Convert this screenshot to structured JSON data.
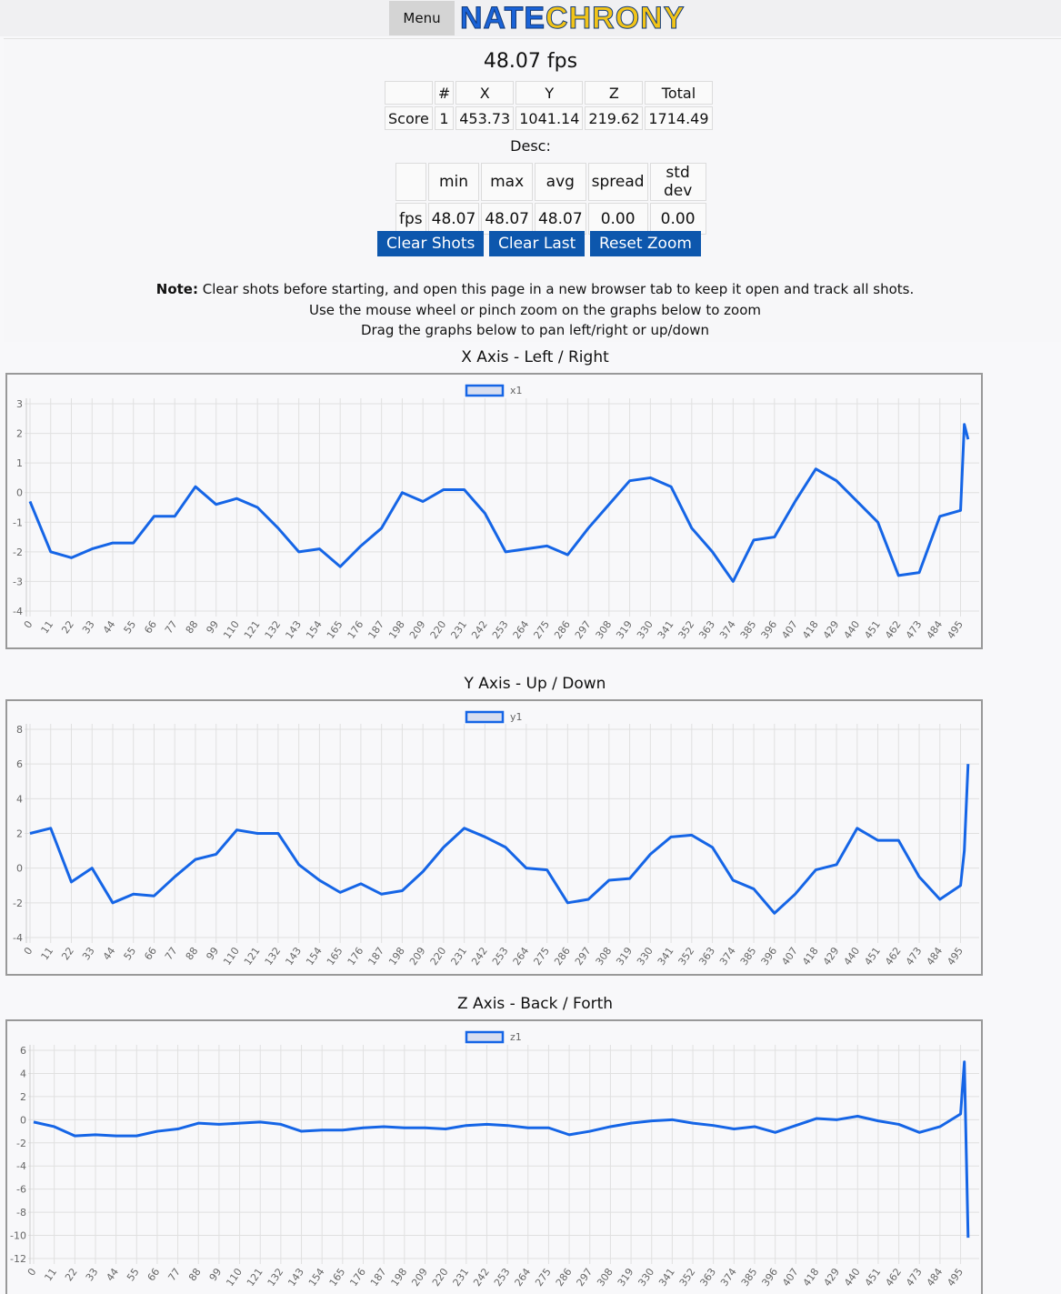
{
  "header": {
    "menu": "Menu",
    "logo": [
      "NATE",
      "CHRONY"
    ]
  },
  "fps": "48.07 fps",
  "score_table": {
    "header": [
      "#",
      "X",
      "Y",
      "Z",
      "Total"
    ],
    "rows": [
      [
        "Score",
        "1",
        "453.73",
        "1041.14",
        "219.62",
        "1714.49"
      ]
    ]
  },
  "desc_label": "Desc:",
  "desc_table": {
    "header": [
      "min",
      "max",
      "avg",
      "spread",
      "std dev"
    ],
    "rows": [
      [
        "fps",
        "48.07",
        "48.07",
        "48.07",
        "0.00",
        "0.00"
      ]
    ]
  },
  "buttons": [
    "Clear Shots",
    "Clear Last",
    "Reset Zoom"
  ],
  "note": {
    "bold": "Note:",
    "lines": [
      "Clear shots before starting, and open this page in a new browser tab to keep it open and track all shots.",
      "Use the mouse wheel or pinch zoom on the graphs below to zoom",
      "Drag the graphs below to pan left/right or up/down"
    ]
  },
  "chart_data": [
    {
      "type": "line",
      "title": "X Axis - Left / Right",
      "legend": "top",
      "grid": true,
      "x": [
        0,
        11,
        22,
        33,
        44,
        55,
        66,
        77,
        88,
        99,
        110,
        121,
        132,
        143,
        154,
        165,
        176,
        187,
        198,
        209,
        220,
        231,
        242,
        253,
        264,
        275,
        286,
        297,
        308,
        319,
        330,
        341,
        352,
        363,
        374,
        385,
        396,
        407,
        418,
        429,
        440,
        451,
        462,
        473,
        484,
        495,
        497,
        499
      ],
      "series": [
        {
          "name": "x1",
          "color": "#1565e6",
          "values": [
            -0.3,
            -2.0,
            -2.2,
            -1.9,
            -1.7,
            -1.7,
            -0.8,
            -0.8,
            0.2,
            -0.4,
            -0.2,
            -0.5,
            -1.2,
            -2.0,
            -1.9,
            -2.5,
            -1.8,
            -1.2,
            0.0,
            -0.3,
            0.1,
            0.1,
            -0.7,
            -2.0,
            -1.9,
            -1.8,
            -2.1,
            -1.2,
            -0.4,
            0.4,
            0.5,
            0.2,
            -1.2,
            -2.0,
            -3.0,
            -1.6,
            -1.5,
            -0.3,
            0.8,
            0.4,
            -0.3,
            -1.0,
            -2.8,
            -2.7,
            -0.8,
            -0.6,
            2.3,
            1.8
          ]
        }
      ],
      "xlim": [
        0,
        502
      ],
      "xticks": [
        0,
        11,
        22,
        33,
        44,
        55,
        66,
        77,
        88,
        99,
        110,
        121,
        132,
        143,
        154,
        165,
        176,
        187,
        198,
        209,
        220,
        231,
        242,
        253,
        264,
        275,
        286,
        297,
        308,
        319,
        330,
        341,
        352,
        363,
        374,
        385,
        396,
        407,
        418,
        429,
        440,
        451,
        462,
        473,
        484,
        495
      ],
      "ylim": [
        -4,
        3
      ],
      "yticks": [
        -4,
        -3,
        -2,
        -1,
        0,
        1,
        2,
        3
      ]
    },
    {
      "type": "line",
      "title": "Y Axis - Up / Down",
      "legend": "top",
      "grid": true,
      "x": [
        0,
        11,
        22,
        33,
        44,
        55,
        66,
        77,
        88,
        99,
        110,
        121,
        132,
        143,
        154,
        165,
        176,
        187,
        198,
        209,
        220,
        231,
        242,
        253,
        264,
        275,
        286,
        297,
        308,
        319,
        330,
        341,
        352,
        363,
        374,
        385,
        396,
        407,
        418,
        429,
        440,
        451,
        462,
        473,
        484,
        495,
        497,
        499
      ],
      "series": [
        {
          "name": "y1",
          "color": "#1565e6",
          "values": [
            2.0,
            2.3,
            -0.8,
            0.0,
            -2.0,
            -1.5,
            -1.6,
            -0.5,
            0.5,
            0.8,
            2.2,
            2.0,
            2.0,
            0.2,
            -0.7,
            -1.4,
            -0.9,
            -1.5,
            -1.3,
            -0.2,
            1.2,
            2.3,
            1.8,
            1.2,
            0.0,
            -0.1,
            -2.0,
            -1.8,
            -0.7,
            -0.6,
            0.8,
            1.8,
            1.9,
            1.2,
            -0.7,
            -1.2,
            -2.6,
            -1.5,
            -0.1,
            0.2,
            2.3,
            1.6,
            1.6,
            -0.5,
            -1.8,
            -1.0,
            1.0,
            6.0
          ]
        }
      ],
      "xlim": [
        0,
        502
      ],
      "xticks": [
        0,
        11,
        22,
        33,
        44,
        55,
        66,
        77,
        88,
        99,
        110,
        121,
        132,
        143,
        154,
        165,
        176,
        187,
        198,
        209,
        220,
        231,
        242,
        253,
        264,
        275,
        286,
        297,
        308,
        319,
        330,
        341,
        352,
        363,
        374,
        385,
        396,
        407,
        418,
        429,
        440,
        451,
        462,
        473,
        484,
        495
      ],
      "ylim": [
        -4,
        8
      ],
      "yticks": [
        -4,
        -2,
        0,
        2,
        4,
        6,
        8
      ]
    },
    {
      "type": "line",
      "title": "Z Axis - Back / Forth",
      "legend": "top",
      "grid": true,
      "x": [
        0,
        11,
        22,
        33,
        44,
        55,
        66,
        77,
        88,
        99,
        110,
        121,
        132,
        143,
        154,
        165,
        176,
        187,
        198,
        209,
        220,
        231,
        242,
        253,
        264,
        275,
        286,
        297,
        308,
        319,
        330,
        341,
        352,
        363,
        374,
        385,
        396,
        407,
        418,
        429,
        440,
        451,
        462,
        473,
        484,
        495,
        497,
        499
      ],
      "series": [
        {
          "name": "z1",
          "color": "#1565e6",
          "values": [
            -0.2,
            -0.6,
            -1.4,
            -1.3,
            -1.4,
            -1.4,
            -1.0,
            -0.8,
            -0.3,
            -0.4,
            -0.3,
            -0.2,
            -0.4,
            -1.0,
            -0.9,
            -0.9,
            -0.7,
            -0.6,
            -0.7,
            -0.7,
            -0.8,
            -0.5,
            -0.4,
            -0.5,
            -0.7,
            -0.7,
            -1.3,
            -1.0,
            -0.6,
            -0.3,
            -0.1,
            0.0,
            -0.3,
            -0.5,
            -0.8,
            -0.6,
            -1.1,
            -0.5,
            0.1,
            0.0,
            0.3,
            -0.1,
            -0.4,
            -1.1,
            -0.6,
            0.5,
            5.0,
            -10.2
          ]
        }
      ],
      "xlim": [
        0,
        502
      ],
      "xticks": [
        0,
        11,
        22,
        33,
        44,
        55,
        66,
        77,
        88,
        99,
        110,
        121,
        132,
        143,
        154,
        165,
        176,
        187,
        198,
        209,
        220,
        231,
        242,
        253,
        264,
        275,
        286,
        297,
        308,
        319,
        330,
        341,
        352,
        363,
        374,
        385,
        396,
        407,
        418,
        429,
        440,
        451,
        462,
        473,
        484,
        495
      ],
      "ylim": [
        -12,
        6
      ],
      "yticks": [
        -12,
        -10,
        -8,
        -6,
        -4,
        -2,
        0,
        2,
        4,
        6
      ]
    }
  ]
}
